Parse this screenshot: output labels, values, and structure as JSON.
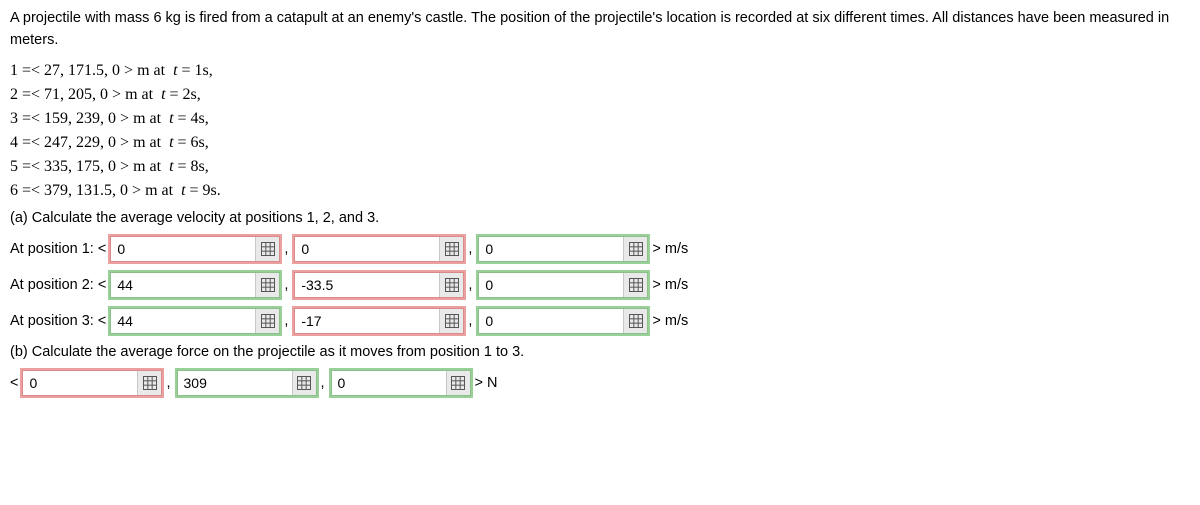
{
  "problem_text": "A projectile with mass 6 kg is fired from a catapult at an enemy's castle. The position of the projectile's location is recorded at six different times. All distances have been measured in meters.",
  "positions": [
    {
      "idx": "1",
      "vec": "27, 171.5, 0",
      "t": "1s,"
    },
    {
      "idx": "2",
      "vec": "71, 205, 0",
      "t": "2s,"
    },
    {
      "idx": "3",
      "vec": "159, 239, 0",
      "t": "4s,"
    },
    {
      "idx": "4",
      "vec": "247, 229, 0",
      "t": "6s,"
    },
    {
      "idx": "5",
      "vec": "335, 175, 0",
      "t": "8s,"
    },
    {
      "idx": "6",
      "vec": "379, 131.5, 0",
      "t": "9s."
    }
  ],
  "partA": {
    "prompt": "(a) Calculate the average velocity at positions 1, 2, and 3.",
    "rows": [
      {
        "label": "At position 1: <",
        "unit": "> m/s",
        "inputs": [
          {
            "value": "0",
            "status": "wrong"
          },
          {
            "value": "0",
            "status": "wrong"
          },
          {
            "value": "0",
            "status": "correct"
          }
        ]
      },
      {
        "label": "At position 2: <",
        "unit": "> m/s",
        "inputs": [
          {
            "value": "44",
            "status": "correct"
          },
          {
            "value": "-33.5",
            "status": "wrong"
          },
          {
            "value": "0",
            "status": "correct"
          }
        ]
      },
      {
        "label": "At position 3: <",
        "unit": "> m/s",
        "inputs": [
          {
            "value": "44",
            "status": "correct"
          },
          {
            "value": "-17",
            "status": "wrong"
          },
          {
            "value": "0",
            "status": "correct"
          }
        ]
      }
    ]
  },
  "partB": {
    "prompt": "(b) Calculate the average force on the projectile as it moves from position 1 to 3.",
    "row": {
      "label": "<",
      "unit": "> N",
      "inputs": [
        {
          "value": "0",
          "status": "wrong"
        },
        {
          "value": "309",
          "status": "correct"
        },
        {
          "value": "0",
          "status": "correct"
        }
      ]
    }
  },
  "icon_name": "grid-icon",
  "colors": {
    "correct_glow": "rgba(70,170,70,0.55)",
    "wrong_glow": "rgba(220,80,80,0.55)",
    "grid_btn_bg": "#e9e9e9"
  }
}
